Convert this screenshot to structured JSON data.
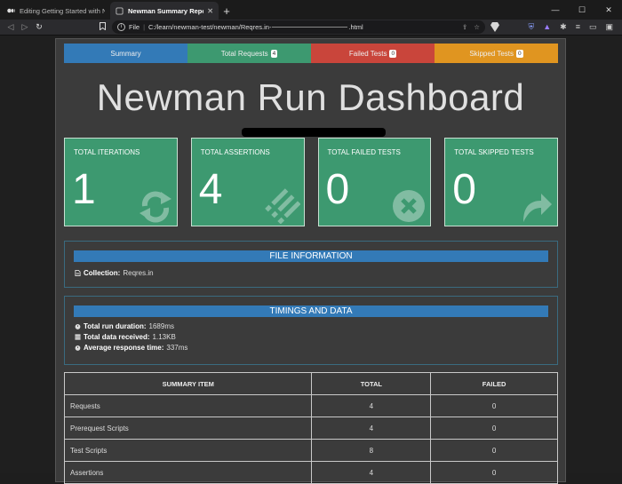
{
  "browser": {
    "tabs": [
      {
        "title": "Editing Getting Started with Newmar",
        "active": false
      },
      {
        "title": "Newman Summary Report",
        "active": true
      }
    ],
    "url": {
      "scheme_label": "File",
      "path_start": "C:/learn/newman-test/newman/Reqres.in-",
      "path_end": ".html"
    }
  },
  "report": {
    "nav": [
      {
        "label": "Summary",
        "badge": "",
        "color": "#337ab7"
      },
      {
        "label": "Total Requests",
        "badge": "4",
        "color": "#3d9970"
      },
      {
        "label": "Failed Tests",
        "badge": "0",
        "color": "#c9453b"
      },
      {
        "label": "Skipped Tests",
        "badge": "0",
        "color": "#e09520"
      }
    ],
    "title": "Newman Run Dashboard",
    "cards": [
      {
        "label": "TOTAL ITERATIONS",
        "value": "1",
        "icon": "sync-icon"
      },
      {
        "label": "TOTAL ASSERTIONS",
        "value": "4",
        "icon": "tasks-icon"
      },
      {
        "label": "TOTAL FAILED TESTS",
        "value": "0",
        "icon": "times-circle-icon"
      },
      {
        "label": "TOTAL SKIPPED TESTS",
        "value": "0",
        "icon": "share-icon"
      }
    ],
    "file_info": {
      "header": "FILE INFORMATION",
      "collection_label": "Collection:",
      "collection_value": "Reqres.in"
    },
    "timings": {
      "header": "TIMINGS AND DATA",
      "duration_label": "Total run duration:",
      "duration_value": "1689ms",
      "data_label": "Total data received:",
      "data_value": "1.13KB",
      "avg_label": "Average response time:",
      "avg_value": "337ms"
    },
    "summary_table": {
      "headers": [
        "SUMMARY ITEM",
        "TOTAL",
        "FAILED"
      ],
      "rows": [
        [
          "Requests",
          "4",
          "0"
        ],
        [
          "Prerequest Scripts",
          "4",
          "0"
        ],
        [
          "Test Scripts",
          "8",
          "0"
        ],
        [
          "Assertions",
          "4",
          "0"
        ]
      ]
    }
  }
}
